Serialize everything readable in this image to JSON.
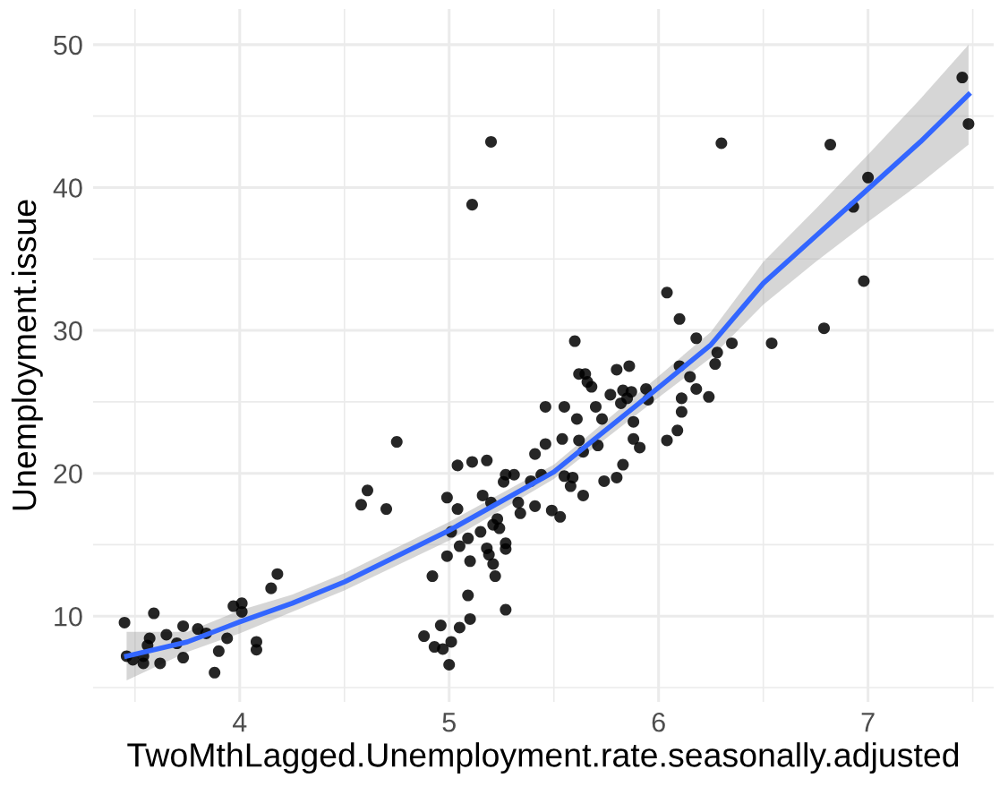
{
  "chart_data": {
    "type": "scatter",
    "xlabel": "TwoMthLagged.Unemployment.rate.seasonally.adjusted",
    "ylabel": "Unemployment.issue",
    "xlim": [
      3.3,
      7.6
    ],
    "ylim": [
      4,
      52.5
    ],
    "xticks": [
      {
        "value": 3.5,
        "label": null
      },
      4,
      {
        "value": 4.5,
        "label": null
      },
      5,
      {
        "value": 5.5,
        "label": null
      },
      6,
      {
        "value": 6.5,
        "label": null
      },
      7,
      {
        "value": 7.5,
        "label": null
      }
    ],
    "yticks": [
      {
        "value": 5,
        "label": null
      },
      10,
      {
        "value": 15,
        "label": null
      },
      20,
      {
        "value": 25,
        "label": null
      },
      30,
      {
        "value": 35,
        "label": null
      },
      40,
      {
        "value": 45,
        "label": null
      },
      50
    ],
    "grid": true,
    "series": [
      {
        "marker": "circle",
        "color": "#000000",
        "x": [
          3.45,
          3.46,
          3.49,
          3.54,
          3.54,
          3.57,
          3.56,
          3.59,
          3.62,
          3.65,
          3.7,
          3.73,
          3.73,
          3.8,
          3.84,
          3.88,
          3.9,
          3.94,
          3.97,
          4.01,
          4.01,
          4.08,
          4.08,
          4.15,
          4.18,
          4.58,
          4.61,
          4.7,
          4.75,
          4.88,
          4.92,
          4.93,
          4.96,
          4.97,
          4.99,
          4.99,
          5.01,
          5.0,
          5.01,
          5.04,
          5.04,
          5.05,
          5.05,
          5.09,
          5.09,
          5.1,
          5.11,
          5.11,
          5.1,
          5.15,
          5.16,
          5.18,
          5.2,
          5.2,
          5.18,
          5.19,
          5.21,
          5.22,
          5.21,
          5.23,
          5.24,
          5.26,
          5.27,
          5.27,
          5.27,
          5.27,
          5.31,
          5.33,
          5.34,
          5.39,
          5.41,
          5.41,
          5.46,
          5.46,
          5.44,
          5.49,
          5.53,
          5.54,
          5.55,
          5.55,
          5.58,
          5.59,
          5.6,
          5.61,
          5.62,
          5.62,
          5.64,
          5.65,
          5.64,
          5.66,
          5.68,
          5.7,
          5.71,
          5.73,
          5.77,
          5.74,
          5.8,
          5.8,
          5.82,
          5.83,
          5.83,
          5.85,
          5.86,
          5.87,
          5.88,
          5.88,
          5.91,
          5.94,
          5.95,
          6.04,
          6.04,
          6.09,
          6.1,
          6.1,
          6.11,
          6.11,
          6.15,
          6.18,
          6.18,
          6.24,
          6.27,
          6.28,
          6.3,
          6.35,
          6.54,
          6.79,
          6.82,
          6.93,
          7.0,
          6.98,
          7.45,
          7.48
        ],
        "values": [
          9.55,
          7.2,
          6.95,
          6.7,
          7.2,
          8.45,
          7.95,
          10.2,
          6.7,
          8.7,
          8.1,
          7.1,
          9.3,
          9.1,
          8.8,
          6.05,
          7.55,
          8.45,
          10.7,
          10.9,
          10.3,
          8.2,
          7.65,
          11.95,
          12.95,
          17.8,
          18.8,
          17.5,
          22.2,
          8.6,
          12.8,
          7.85,
          9.35,
          7.7,
          18.3,
          14.2,
          8.2,
          6.6,
          15.9,
          20.55,
          17.5,
          9.2,
          14.9,
          15.45,
          11.45,
          9.8,
          38.8,
          20.8,
          13.85,
          15.9,
          18.45,
          20.9,
          43.2,
          17.95,
          14.75,
          14.3,
          13.65,
          12.8,
          16.4,
          16.8,
          16.15,
          19.4,
          19.9,
          15.1,
          14.7,
          10.45,
          19.9,
          17.95,
          17.2,
          19.45,
          21.35,
          17.7,
          24.65,
          22.05,
          19.9,
          17.4,
          16.95,
          22.4,
          24.65,
          19.8,
          19.1,
          19.7,
          29.25,
          23.8,
          22.3,
          26.95,
          21.5,
          26.95,
          18.45,
          26.4,
          26.05,
          24.65,
          21.95,
          23.8,
          25.5,
          19.45,
          27.25,
          19.7,
          24.9,
          20.6,
          25.8,
          25.25,
          27.5,
          25.7,
          23.6,
          22.4,
          21.8,
          25.9,
          25.15,
          32.65,
          22.3,
          23.0,
          30.8,
          27.5,
          25.25,
          24.3,
          26.75,
          25.9,
          29.45,
          25.35,
          27.65,
          28.45,
          43.1,
          29.1,
          29.1,
          30.15,
          43.0,
          38.65,
          40.7,
          33.45,
          47.7,
          44.45
        ]
      },
      {
        "type": "line",
        "marker": "none",
        "color": "#3366ff",
        "x": [
          3.46,
          3.75,
          4.0,
          4.25,
          4.5,
          5.0,
          5.5,
          6.0,
          6.25,
          6.5,
          6.75,
          7.0,
          7.25,
          7.48
        ],
        "values": [
          7.2,
          8.2,
          9.6,
          10.9,
          12.4,
          16.0,
          20.1,
          26.0,
          29.0,
          33.3,
          36.6,
          39.9,
          43.2,
          46.5
        ],
        "lower": [
          5.5,
          7.5,
          8.8,
          10.3,
          11.8,
          15.3,
          19.6,
          25.3,
          28.1,
          31.8,
          34.8,
          37.6,
          40.3,
          43.0
        ],
        "upper": [
          8.9,
          8.9,
          10.4,
          11.5,
          13.0,
          16.6,
          20.6,
          26.8,
          29.9,
          34.8,
          38.5,
          42.3,
          46.2,
          50.0
        ]
      }
    ]
  }
}
